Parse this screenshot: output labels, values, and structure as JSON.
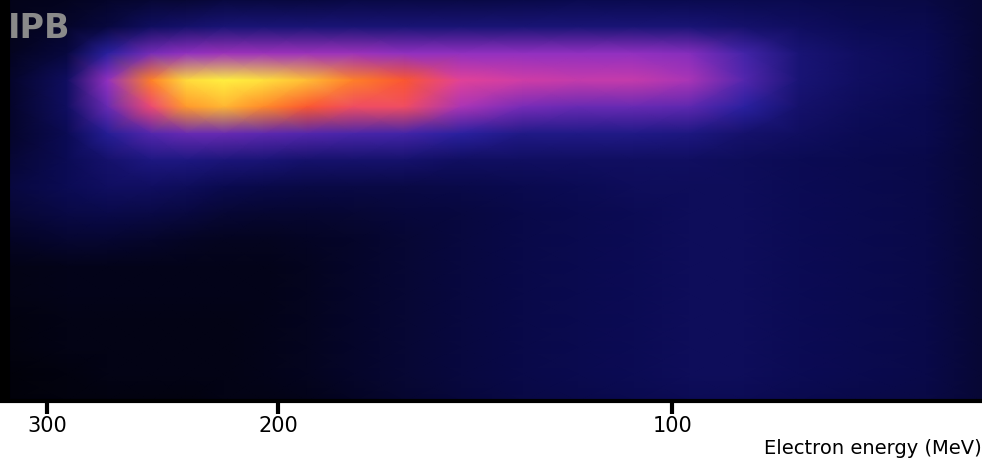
{
  "chart_data": {
    "type": "heatmap",
    "x_label": "Electron energy (MeV)",
    "annotations": [
      "IPB"
    ],
    "log": "x",
    "tick_labels": "x",
    "xlim": [
      326,
      58
    ],
    "xticks": [
      300,
      200,
      100
    ],
    "ylim": [
      15,
      0
    ],
    "x": [
      320,
      290,
      270,
      250,
      235,
      220,
      205,
      190,
      175,
      160,
      145,
      130,
      118,
      107,
      97,
      88,
      80,
      72,
      64,
      58
    ],
    "y": [
      0,
      1,
      2,
      3,
      4,
      5,
      6,
      7,
      8,
      9,
      10,
      11,
      12,
      13,
      14,
      15
    ],
    "cell_range": [
      0,
      1
    ],
    "cells": [
      [
        0.05,
        0.06,
        0.08,
        0.1,
        0.1,
        0.12,
        0.12,
        0.12,
        0.13,
        0.13,
        0.13,
        0.14,
        0.15,
        0.15,
        0.15,
        0.15,
        0.15,
        0.14,
        0.13,
        0.1
      ],
      [
        0.05,
        0.08,
        0.12,
        0.18,
        0.2,
        0.22,
        0.22,
        0.22,
        0.22,
        0.22,
        0.22,
        0.22,
        0.22,
        0.22,
        0.22,
        0.2,
        0.18,
        0.16,
        0.15,
        0.1
      ],
      [
        0.06,
        0.12,
        0.3,
        0.45,
        0.5,
        0.52,
        0.52,
        0.52,
        0.52,
        0.5,
        0.5,
        0.5,
        0.5,
        0.5,
        0.48,
        0.35,
        0.22,
        0.18,
        0.16,
        0.1
      ],
      [
        0.08,
        0.18,
        0.5,
        0.85,
        0.97,
        1.0,
        0.98,
        0.93,
        0.85,
        0.78,
        0.66,
        0.62,
        0.6,
        0.6,
        0.55,
        0.38,
        0.22,
        0.18,
        0.16,
        0.1
      ],
      [
        0.08,
        0.18,
        0.42,
        0.7,
        0.88,
        0.92,
        0.86,
        0.78,
        0.72,
        0.72,
        0.55,
        0.45,
        0.42,
        0.42,
        0.4,
        0.3,
        0.2,
        0.17,
        0.15,
        0.1
      ],
      [
        0.08,
        0.16,
        0.28,
        0.38,
        0.42,
        0.42,
        0.4,
        0.38,
        0.36,
        0.35,
        0.3,
        0.25,
        0.25,
        0.25,
        0.24,
        0.2,
        0.18,
        0.16,
        0.15,
        0.1
      ],
      [
        0.1,
        0.16,
        0.2,
        0.24,
        0.24,
        0.23,
        0.22,
        0.2,
        0.2,
        0.2,
        0.18,
        0.18,
        0.18,
        0.18,
        0.18,
        0.17,
        0.16,
        0.15,
        0.14,
        0.1
      ],
      [
        0.12,
        0.16,
        0.18,
        0.18,
        0.17,
        0.15,
        0.14,
        0.13,
        0.13,
        0.13,
        0.14,
        0.15,
        0.16,
        0.17,
        0.17,
        0.17,
        0.16,
        0.15,
        0.14,
        0.1
      ],
      [
        0.1,
        0.13,
        0.14,
        0.13,
        0.12,
        0.1,
        0.09,
        0.09,
        0.1,
        0.11,
        0.12,
        0.14,
        0.15,
        0.16,
        0.17,
        0.17,
        0.16,
        0.15,
        0.14,
        0.1
      ],
      [
        0.07,
        0.09,
        0.09,
        0.08,
        0.07,
        0.06,
        0.06,
        0.07,
        0.08,
        0.1,
        0.12,
        0.14,
        0.15,
        0.16,
        0.17,
        0.17,
        0.16,
        0.15,
        0.14,
        0.1
      ],
      [
        0.04,
        0.05,
        0.05,
        0.05,
        0.05,
        0.05,
        0.05,
        0.06,
        0.08,
        0.1,
        0.12,
        0.14,
        0.15,
        0.16,
        0.17,
        0.17,
        0.16,
        0.15,
        0.14,
        0.1
      ],
      [
        0.04,
        0.05,
        0.05,
        0.05,
        0.05,
        0.05,
        0.05,
        0.06,
        0.08,
        0.1,
        0.12,
        0.14,
        0.15,
        0.16,
        0.17,
        0.17,
        0.16,
        0.15,
        0.14,
        0.1
      ],
      [
        0.03,
        0.04,
        0.04,
        0.04,
        0.04,
        0.04,
        0.05,
        0.06,
        0.08,
        0.1,
        0.12,
        0.14,
        0.15,
        0.16,
        0.17,
        0.17,
        0.16,
        0.15,
        0.14,
        0.1
      ],
      [
        0.03,
        0.04,
        0.04,
        0.04,
        0.04,
        0.04,
        0.05,
        0.06,
        0.08,
        0.1,
        0.12,
        0.14,
        0.15,
        0.16,
        0.17,
        0.17,
        0.16,
        0.15,
        0.14,
        0.1
      ],
      [
        0.02,
        0.03,
        0.04,
        0.04,
        0.04,
        0.04,
        0.05,
        0.06,
        0.08,
        0.1,
        0.12,
        0.14,
        0.15,
        0.16,
        0.17,
        0.17,
        0.16,
        0.15,
        0.14,
        0.1
      ],
      [
        0.02,
        0.03,
        0.03,
        0.03,
        0.03,
        0.04,
        0.04,
        0.05,
        0.07,
        0.09,
        0.11,
        0.13,
        0.14,
        0.15,
        0.16,
        0.16,
        0.15,
        0.14,
        0.13,
        0.1
      ]
    ]
  }
}
